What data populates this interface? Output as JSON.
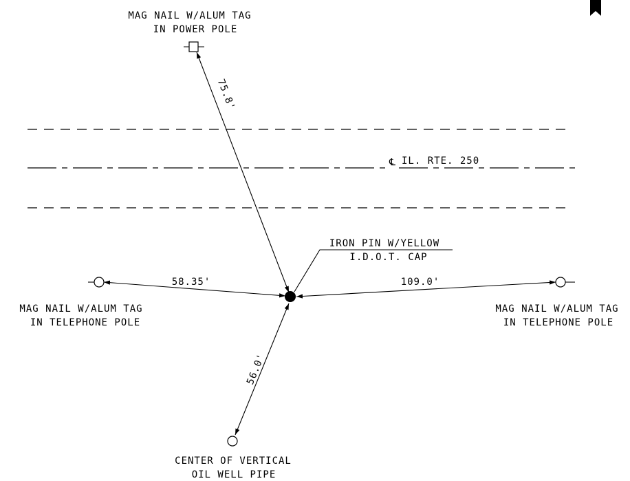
{
  "road": {
    "centerline_label": "IL. RTE. 250",
    "centerline_symbol": "℄"
  },
  "iron_pin": {
    "label_line1": "IRON PIN W/YELLOW",
    "label_line2": "I.D.O.T. CAP"
  },
  "power_pole": {
    "label_line1": "MAG NAIL W/ALUM TAG",
    "label_line2": "IN POWER POLE",
    "distance": "75.8'"
  },
  "telephone_pole_west": {
    "label_line1": "MAG NAIL W/ALUM TAG",
    "label_line2": "IN TELEPHONE POLE",
    "distance": "58.35'"
  },
  "telephone_pole_east": {
    "label_line1": "MAG NAIL W/ALUM TAG",
    "label_line2": "IN TELEPHONE POLE",
    "distance": "109.0'"
  },
  "oil_well": {
    "label_line1": "CENTER OF VERTICAL",
    "label_line2": "OIL WELL PIPE",
    "distance": "56.0'"
  },
  "icons": {
    "corner": "bookmark-icon"
  }
}
